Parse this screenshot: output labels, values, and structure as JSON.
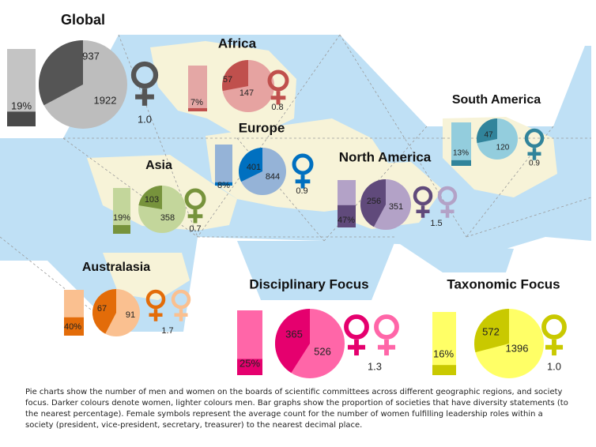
{
  "chart_data": [
    {
      "type": "pie",
      "title": "Global",
      "women": 937,
      "men": 1922,
      "diversity_percent": "19%",
      "leadership_women": "1.0",
      "symbols": 1,
      "colors": {
        "women": "#555555",
        "men": "#bdbdbd",
        "bar_dark": "#4a4a4a",
        "bar_light": "#c4c4c4"
      }
    },
    {
      "type": "pie",
      "title": "Africa",
      "women": 57,
      "men": 147,
      "diversity_percent": "7%",
      "leadership_women": "0.8",
      "symbols": 1,
      "colors": {
        "women": "#c0504d",
        "men": "#e6a3a1",
        "bar_dark": "#c0504d",
        "bar_light": "#e4a7a5"
      }
    },
    {
      "type": "pie",
      "title": "South America",
      "women": 47,
      "men": 120,
      "diversity_percent": "13%",
      "leadership_women": "0.9",
      "symbols": 1,
      "colors": {
        "women": "#31849b",
        "men": "#93cddd",
        "bar_dark": "#31849b",
        "bar_light": "#93cddd"
      }
    },
    {
      "type": "pie",
      "title": "Europe",
      "women": 401,
      "men": 844,
      "diversity_percent": "8%",
      "leadership_women": "0.9",
      "symbols": 1,
      "colors": {
        "women": "#0070c0",
        "men": "#95b3d7",
        "bar_dark": "#0070c0",
        "bar_light": "#95b3d7"
      }
    },
    {
      "type": "pie",
      "title": "Asia",
      "women": 103,
      "men": 358,
      "diversity_percent": "19%",
      "leadership_women": "0.7",
      "symbols": 1,
      "colors": {
        "women": "#77933c",
        "men": "#c3d69b",
        "bar_dark": "#77933c",
        "bar_light": "#c3d69b"
      }
    },
    {
      "type": "pie",
      "title": "North America",
      "women": 256,
      "men": 351,
      "diversity_percent": "47%",
      "leadership_women": "1.5",
      "symbols": 2,
      "colors": {
        "women": "#604a7b",
        "men": "#b3a2c7",
        "bar_dark": "#604a7b",
        "bar_light": "#b3a2c7"
      }
    },
    {
      "type": "pie",
      "title": "Australasia",
      "women": 67,
      "men": 91,
      "diversity_percent": "40%",
      "leadership_women": "1.7",
      "symbols": 2,
      "colors": {
        "women": "#e36c09",
        "men": "#fac090",
        "bar_dark": "#e36c09",
        "bar_light": "#fac090"
      }
    },
    {
      "type": "pie",
      "title": "Disciplinary Focus",
      "women": 365,
      "men": 526,
      "diversity_percent": "25%",
      "leadership_women": "1.3",
      "symbols": 2,
      "colors": {
        "women": "#e5006e",
        "men": "#ff66a8",
        "bar_dark": "#e5006e",
        "bar_light": "#ff66a8"
      }
    },
    {
      "type": "pie",
      "title": "Taxonomic Focus",
      "women": 572,
      "men": 1396,
      "diversity_percent": "16%",
      "leadership_women": "1.0",
      "symbols": 1,
      "colors": {
        "women": "#c9c900",
        "men": "#ffff66",
        "bar_dark": "#c9c900",
        "bar_light": "#ffff66"
      }
    }
  ],
  "caption": "Pie charts show the number of men and women on the boards of scientific committees across different geographic regions, and society focus. Darker colours denote women, lighter colours men. Bar graphs show the proportion of societies that have diversity statements (to the nearest percentage). Female symbols represent the average count for the number of women fulfilling leadership roles within a society (president, vice-president, secretary, treasurer) to the nearest decimal place.",
  "map_colors": {
    "ocean": "#bfe0f5",
    "land": "#f7f3d8"
  }
}
